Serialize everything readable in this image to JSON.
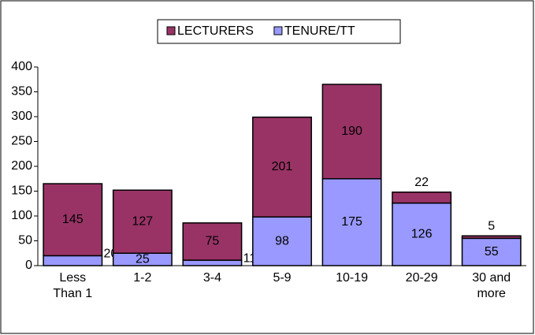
{
  "chart_data": {
    "type": "stacked_bar",
    "categories": [
      "Less Than 1",
      "1-2",
      "3-4",
      "5-9",
      "10-19",
      "20-29",
      "30 and more"
    ],
    "series": [
      {
        "name": "LECTURERS",
        "color": "#993366",
        "values": [
          145,
          127,
          75,
          201,
          190,
          22,
          5
        ]
      },
      {
        "name": "TENURE/TT",
        "color": "#9999ff",
        "values": [
          20,
          25,
          11,
          98,
          175,
          126,
          55
        ]
      }
    ],
    "stack_order": [
      1,
      0
    ],
    "ylim": [
      0,
      400
    ],
    "yticks": [
      0,
      50,
      100,
      150,
      200,
      250,
      300,
      350,
      400
    ],
    "grid": false,
    "legend": "top"
  }
}
